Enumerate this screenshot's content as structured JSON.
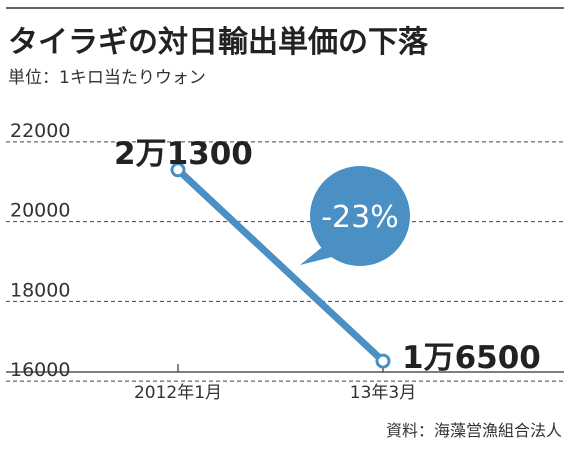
{
  "chart_data": {
    "type": "line",
    "title": "タイラギの対日輸出単価の下落",
    "subtitle": "単位：1キロ当たりウォン",
    "categories": [
      "2012年1月",
      "13年3月"
    ],
    "series": [
      {
        "values": [
          21300,
          16500
        ]
      }
    ],
    "data_labels": [
      "2万1300",
      "1万6500"
    ],
    "callout": "-23%",
    "yticks": [
      16000,
      18000,
      20000,
      22000
    ],
    "ylim": [
      15600,
      22400
    ],
    "grid": true,
    "source": "資料：海藻営漁組合法人",
    "colors": {
      "line": "#4a90c4",
      "bubble": "#4a90c4",
      "text": "#222222",
      "rule": "#333333"
    }
  }
}
